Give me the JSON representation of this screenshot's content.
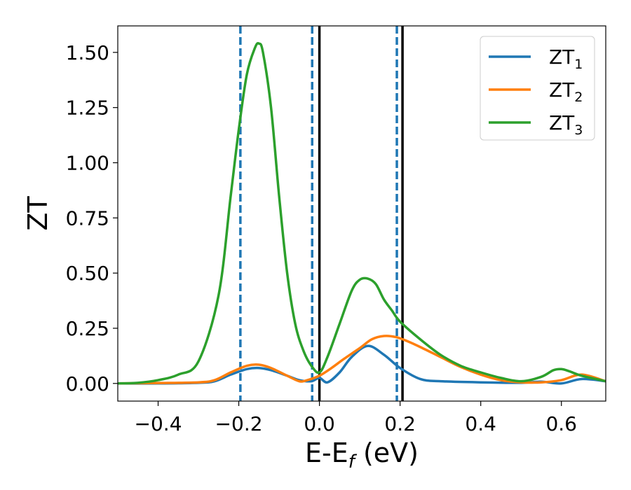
{
  "chart_data": {
    "type": "line",
    "title": "",
    "xlabel": {
      "main": "E-E",
      "sub": "f",
      "suffix": " (eV)"
    },
    "ylabel": "ZT",
    "xlim": [
      -0.5,
      0.71
    ],
    "ylim": [
      -0.08,
      1.62
    ],
    "x_ticks": [
      -0.4,
      -0.2,
      0.0,
      0.2,
      0.4,
      0.6
    ],
    "x_tick_labels": [
      "−0.4",
      "−0.2",
      "0.0",
      "0.2",
      "0.4",
      "0.6"
    ],
    "y_ticks": [
      0.0,
      0.25,
      0.5,
      0.75,
      1.0,
      1.25,
      1.5
    ],
    "y_tick_labels": [
      "0.00",
      "0.25",
      "0.50",
      "0.75",
      "1.00",
      "1.25",
      "1.50"
    ],
    "grid": false,
    "legend_position": "top-right",
    "series": [
      {
        "name": "ZT",
        "subscript": "1",
        "color": "#1f77b4",
        "x": [
          -0.5,
          -0.4,
          -0.3,
          -0.26,
          -0.22,
          -0.18,
          -0.15,
          -0.12,
          -0.08,
          -0.05,
          -0.02,
          0.0,
          0.02,
          0.05,
          0.08,
          0.12,
          0.16,
          0.2,
          0.25,
          0.3,
          0.4,
          0.5,
          0.55,
          0.6,
          0.65,
          0.71
        ],
        "y": [
          0.0,
          0.0,
          0.003,
          0.01,
          0.04,
          0.065,
          0.07,
          0.06,
          0.035,
          0.015,
          0.01,
          0.025,
          0.005,
          0.05,
          0.12,
          0.17,
          0.13,
          0.07,
          0.02,
          0.01,
          0.005,
          0.003,
          0.008,
          0.0,
          0.02,
          0.01
        ]
      },
      {
        "name": "ZT",
        "subscript": "2",
        "color": "#ff7f0e",
        "x": [
          -0.5,
          -0.4,
          -0.3,
          -0.26,
          -0.22,
          -0.18,
          -0.15,
          -0.12,
          -0.08,
          -0.05,
          -0.03,
          0.0,
          0.03,
          0.06,
          0.1,
          0.13,
          0.16,
          0.19,
          0.22,
          0.25,
          0.3,
          0.35,
          0.4,
          0.45,
          0.5,
          0.55,
          0.6,
          0.65,
          0.71
        ],
        "y": [
          0.0,
          0.002,
          0.005,
          0.015,
          0.05,
          0.08,
          0.085,
          0.07,
          0.035,
          0.01,
          0.015,
          0.035,
          0.07,
          0.11,
          0.16,
          0.2,
          0.215,
          0.21,
          0.19,
          0.165,
          0.12,
          0.075,
          0.04,
          0.015,
          0.005,
          0.005,
          0.015,
          0.04,
          0.01
        ]
      },
      {
        "name": "ZT",
        "subscript": "3",
        "color": "#2ca02c",
        "x": [
          -0.5,
          -0.45,
          -0.4,
          -0.35,
          -0.3,
          -0.25,
          -0.22,
          -0.2,
          -0.18,
          -0.16,
          -0.15,
          -0.14,
          -0.12,
          -0.1,
          -0.08,
          -0.06,
          -0.04,
          -0.02,
          0.0,
          0.02,
          0.05,
          0.08,
          0.1,
          0.12,
          0.14,
          0.16,
          0.18,
          0.2,
          0.25,
          0.3,
          0.35,
          0.4,
          0.45,
          0.5,
          0.55,
          0.58,
          0.6,
          0.62,
          0.65,
          0.71
        ],
        "y": [
          0.0,
          0.003,
          0.015,
          0.04,
          0.1,
          0.4,
          0.85,
          1.15,
          1.4,
          1.52,
          1.54,
          1.5,
          1.25,
          0.85,
          0.5,
          0.27,
          0.15,
          0.08,
          0.05,
          0.12,
          0.27,
          0.42,
          0.47,
          0.475,
          0.45,
          0.38,
          0.33,
          0.28,
          0.2,
          0.13,
          0.08,
          0.05,
          0.025,
          0.01,
          0.03,
          0.06,
          0.065,
          0.055,
          0.035,
          0.01
        ]
      }
    ],
    "vlines": [
      {
        "x": -0.196,
        "style": "dashed",
        "color": "#1f77b4"
      },
      {
        "x": -0.018,
        "style": "dashed",
        "color": "#1f77b4"
      },
      {
        "x": 0.0,
        "style": "solid",
        "color": "#000000"
      },
      {
        "x": 0.192,
        "style": "dashed",
        "color": "#1f77b4"
      },
      {
        "x": 0.206,
        "style": "solid",
        "color": "#000000"
      }
    ]
  }
}
